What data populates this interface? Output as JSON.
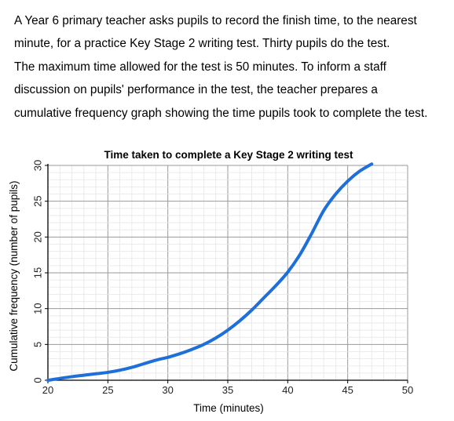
{
  "intro": {
    "lines": [
      "A Year 6 primary teacher asks pupils to record the finish time, to the nearest",
      "minute, for a practice Key Stage 2 writing test. Thirty pupils do the test.",
      "The maximum time allowed for the test is 50 minutes. To inform a staff",
      "discussion on pupils' performance in the test, the teacher prepares a",
      "cumulative frequency graph showing the time pupils took to complete the test."
    ]
  },
  "chart_data": {
    "type": "line",
    "title": "Time taken to complete a Key Stage 2 writing test",
    "xlabel": "Time (minutes)",
    "ylabel": "Cumulative frequency (number of pupils)",
    "xlim": [
      20,
      50
    ],
    "ylim": [
      0,
      30
    ],
    "xticks": [
      20,
      25,
      30,
      35,
      40,
      45,
      50
    ],
    "yticks": [
      0,
      5,
      10,
      15,
      20,
      25,
      30
    ],
    "grid": true,
    "series": [
      {
        "name": "Cumulative frequency",
        "color": "#1e6fd9",
        "x": [
          20,
          22,
          24,
          25,
          26,
          27,
          28,
          29,
          30,
          31,
          32,
          33,
          34,
          35,
          36,
          37,
          38,
          39,
          40,
          41,
          42,
          43,
          44,
          45,
          46,
          47
        ],
        "y": [
          0,
          0.5,
          0.9,
          1.1,
          1.4,
          1.8,
          2.3,
          2.8,
          3.2,
          3.7,
          4.3,
          5.0,
          5.9,
          7.0,
          8.3,
          9.8,
          11.5,
          13.2,
          15.1,
          17.5,
          20.5,
          23.7,
          26.0,
          27.8,
          29.2,
          30.2
        ]
      }
    ]
  }
}
